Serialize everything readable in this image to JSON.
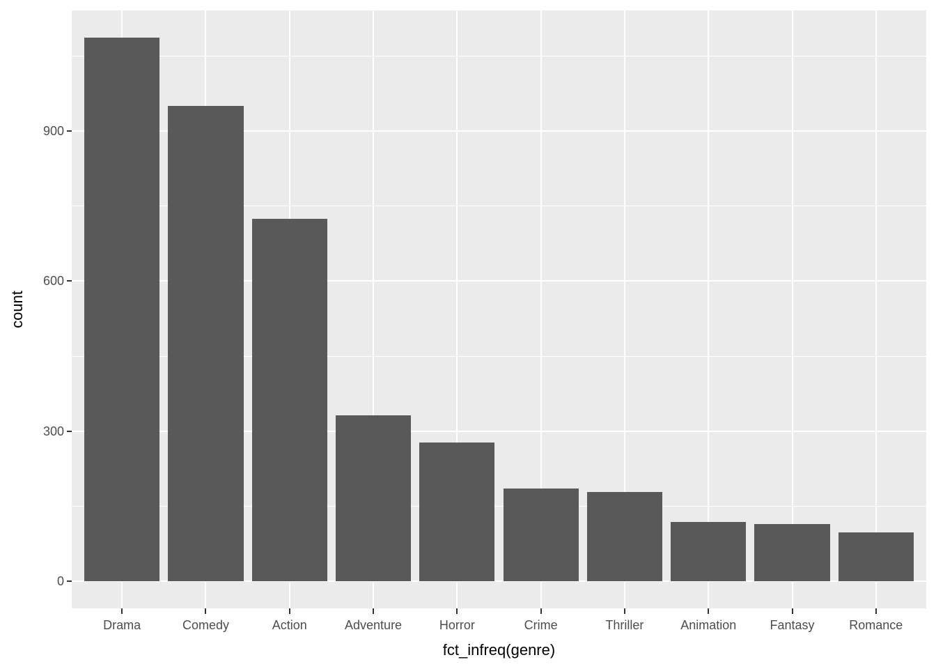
{
  "chart_data": {
    "type": "bar",
    "title": "",
    "categories": [
      "Drama",
      "Comedy",
      "Action",
      "Adventure",
      "Horror",
      "Crime",
      "Thriller",
      "Animation",
      "Fantasy",
      "Romance"
    ],
    "values": [
      1087,
      950,
      725,
      331,
      277,
      186,
      178,
      118,
      114,
      97
    ],
    "xlabel": "fct_infreq(genre)",
    "ylabel": "count",
    "y_major_ticks": [
      0,
      300,
      600,
      900
    ],
    "y_minor_ticks": [
      150,
      450,
      750,
      1050
    ],
    "ylim": [
      0,
      1087
    ],
    "grid": "on",
    "legend": "none",
    "style": {
      "bar_fill": "#595959",
      "panel_bg": "#EBEBEB",
      "grid_color": "#FFFFFF",
      "axis_text_color": "#4D4D4D",
      "axis_title_color": "#000000",
      "tick_mark_color": "#333333",
      "figure_bg": "#FFFFFF"
    }
  }
}
